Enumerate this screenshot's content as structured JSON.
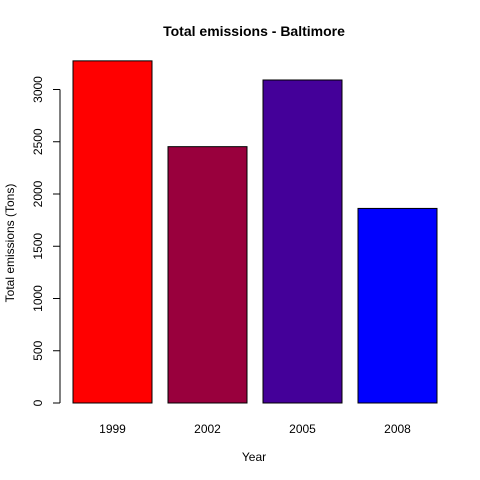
{
  "chart_data": {
    "type": "bar",
    "title": "Total emissions - Baltimore",
    "xlabel": "Year",
    "ylabel": "Total emissions (Tons)",
    "categories": [
      "1999",
      "2002",
      "2005",
      "2008"
    ],
    "values": [
      3274,
      2453,
      3091,
      1862
    ],
    "colors": [
      "#ff0000",
      "#99003d",
      "#440099",
      "#0000ff"
    ],
    "ylim": [
      0,
      3300
    ],
    "yticks": [
      0,
      500,
      1000,
      1500,
      2000,
      2500,
      3000
    ],
    "ytick_labels": [
      "0",
      "500",
      "1000",
      "1500",
      "2000",
      "2500",
      "3000"
    ],
    "grid": false,
    "legend": "none"
  }
}
